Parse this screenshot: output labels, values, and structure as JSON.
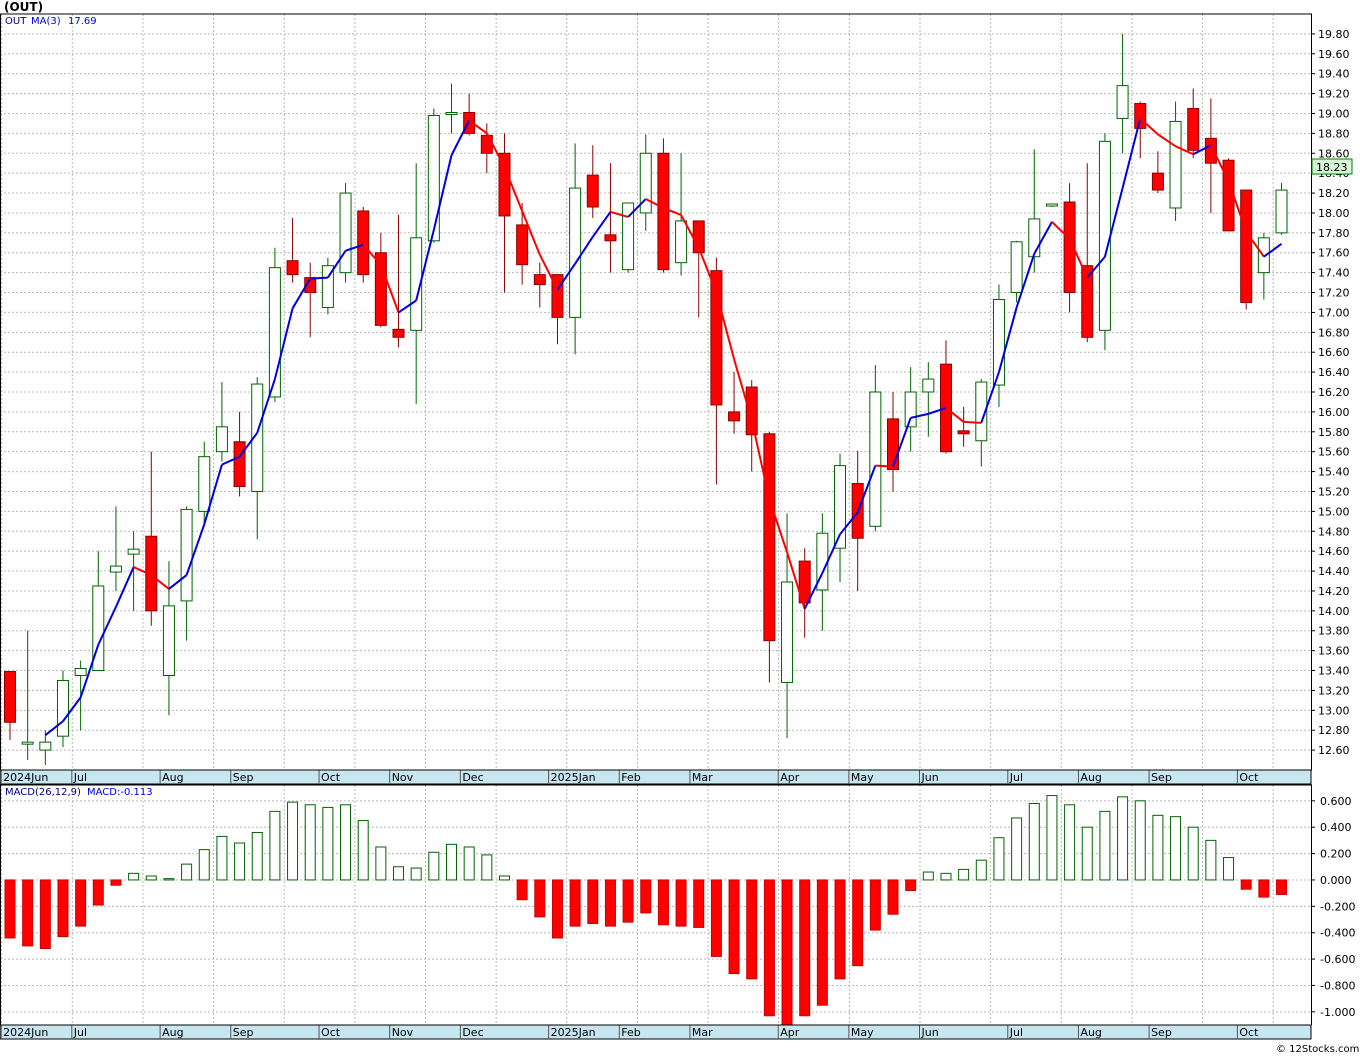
{
  "chart_data": [
    {
      "type": "candlestick",
      "title": "(OUT)",
      "legend": {
        "symbol": "OUT",
        "ma_label": "MA(3)",
        "ma_value": "17.69"
      },
      "last_price_label": "18.23",
      "y_ticks": [
        "12.60",
        "12.80",
        "13.00",
        "13.20",
        "13.40",
        "13.60",
        "13.80",
        "14.00",
        "14.20",
        "14.40",
        "14.60",
        "14.80",
        "15.00",
        "15.20",
        "15.40",
        "15.60",
        "15.80",
        "16.00",
        "16.20",
        "16.40",
        "16.60",
        "16.80",
        "17.00",
        "17.20",
        "17.40",
        "17.60",
        "17.80",
        "18.00",
        "18.20",
        "18.40",
        "18.60",
        "18.80",
        "19.00",
        "19.20",
        "19.40",
        "19.60",
        "19.80"
      ],
      "ylim": [
        12.4,
        20.0
      ],
      "x_labels": [
        {
          "label": "2024Jun",
          "week": 0
        },
        {
          "label": "Jul",
          "week": 4
        },
        {
          "label": "Aug",
          "week": 9
        },
        {
          "label": "Sep",
          "week": 13
        },
        {
          "label": "Oct",
          "week": 18
        },
        {
          "label": "Nov",
          "week": 22
        },
        {
          "label": "Dec",
          "week": 26
        },
        {
          "label": "2025Jan",
          "week": 31
        },
        {
          "label": "Feb",
          "week": 35
        },
        {
          "label": "Mar",
          "week": 39
        },
        {
          "label": "Apr",
          "week": 44
        },
        {
          "label": "May",
          "week": 48
        },
        {
          "label": "Jun",
          "week": 52
        },
        {
          "label": "Jul",
          "week": 57
        },
        {
          "label": "Aug",
          "week": 61
        },
        {
          "label": "Sep",
          "week": 65
        },
        {
          "label": "Oct",
          "week": 70
        }
      ],
      "candles": [
        {
          "o": 13.39,
          "h": 13.39,
          "l": 12.7,
          "c": 12.88
        },
        {
          "o": 12.68,
          "h": 13.8,
          "l": 12.5,
          "c": 12.68
        },
        {
          "o": 12.6,
          "h": 12.8,
          "l": 12.45,
          "c": 12.68
        },
        {
          "o": 12.74,
          "h": 13.4,
          "l": 12.63,
          "c": 13.3
        },
        {
          "o": 13.35,
          "h": 13.5,
          "l": 12.8,
          "c": 13.42
        },
        {
          "o": 13.4,
          "h": 14.6,
          "l": 13.4,
          "c": 14.25
        },
        {
          "o": 14.39,
          "h": 15.05,
          "l": 14.2,
          "c": 14.45
        },
        {
          "o": 14.57,
          "h": 14.8,
          "l": 14.0,
          "c": 14.62
        },
        {
          "o": 14.75,
          "h": 15.6,
          "l": 13.85,
          "c": 14.0
        },
        {
          "o": 13.35,
          "h": 14.5,
          "l": 12.95,
          "c": 14.05
        },
        {
          "o": 14.1,
          "h": 15.05,
          "l": 13.7,
          "c": 15.02
        },
        {
          "o": 15.0,
          "h": 15.7,
          "l": 14.85,
          "c": 15.55
        },
        {
          "o": 15.6,
          "h": 16.3,
          "l": 15.5,
          "c": 15.85
        },
        {
          "o": 15.7,
          "h": 16.0,
          "l": 15.15,
          "c": 15.25
        },
        {
          "o": 15.2,
          "h": 16.35,
          "l": 14.72,
          "c": 16.28
        },
        {
          "o": 16.15,
          "h": 17.65,
          "l": 16.1,
          "c": 17.45
        },
        {
          "o": 17.52,
          "h": 17.95,
          "l": 17.3,
          "c": 17.38
        },
        {
          "o": 17.35,
          "h": 17.5,
          "l": 16.75,
          "c": 17.2
        },
        {
          "o": 17.05,
          "h": 17.55,
          "l": 16.98,
          "c": 17.47
        },
        {
          "o": 17.4,
          "h": 18.3,
          "l": 17.3,
          "c": 18.2
        },
        {
          "o": 18.02,
          "h": 18.06,
          "l": 17.3,
          "c": 17.38
        },
        {
          "o": 17.6,
          "h": 17.8,
          "l": 16.85,
          "c": 16.87
        },
        {
          "o": 16.83,
          "h": 17.98,
          "l": 16.65,
          "c": 16.75
        },
        {
          "o": 16.82,
          "h": 18.5,
          "l": 16.08,
          "c": 17.75
        },
        {
          "o": 17.72,
          "h": 19.05,
          "l": 17.7,
          "c": 18.98
        },
        {
          "o": 19.01,
          "h": 19.3,
          "l": 18.8,
          "c": 19.01
        },
        {
          "o": 19.01,
          "h": 19.2,
          "l": 18.78,
          "c": 18.8
        },
        {
          "o": 18.78,
          "h": 18.9,
          "l": 18.4,
          "c": 18.6
        },
        {
          "o": 18.6,
          "h": 18.8,
          "l": 17.2,
          "c": 17.97
        },
        {
          "o": 17.88,
          "h": 18.1,
          "l": 17.28,
          "c": 17.48
        },
        {
          "o": 17.38,
          "h": 17.5,
          "l": 17.05,
          "c": 17.28
        },
        {
          "o": 17.38,
          "h": 17.38,
          "l": 16.68,
          "c": 16.95
        },
        {
          "o": 16.95,
          "h": 18.7,
          "l": 16.58,
          "c": 18.25
        },
        {
          "o": 18.38,
          "h": 18.68,
          "l": 17.95,
          "c": 18.06
        },
        {
          "o": 17.78,
          "h": 18.5,
          "l": 17.4,
          "c": 17.72
        },
        {
          "o": 17.43,
          "h": 18.05,
          "l": 17.4,
          "c": 18.1
        },
        {
          "o": 18.0,
          "h": 18.79,
          "l": 17.82,
          "c": 18.6
        },
        {
          "o": 18.6,
          "h": 18.75,
          "l": 17.4,
          "c": 17.43
        },
        {
          "o": 17.5,
          "h": 18.6,
          "l": 17.37,
          "c": 17.92
        },
        {
          "o": 17.92,
          "h": 17.92,
          "l": 16.95,
          "c": 17.6
        },
        {
          "o": 17.42,
          "h": 17.55,
          "l": 15.27,
          "c": 16.07
        },
        {
          "o": 16.0,
          "h": 16.4,
          "l": 15.78,
          "c": 15.91
        },
        {
          "o": 16.25,
          "h": 16.32,
          "l": 15.4,
          "c": 15.77
        },
        {
          "o": 15.78,
          "h": 15.8,
          "l": 13.28,
          "c": 13.7
        },
        {
          "o": 13.28,
          "h": 14.98,
          "l": 12.72,
          "c": 14.29
        },
        {
          "o": 14.5,
          "h": 14.63,
          "l": 13.73,
          "c": 14.08
        },
        {
          "o": 14.21,
          "h": 14.98,
          "l": 13.8,
          "c": 14.78
        },
        {
          "o": 14.63,
          "h": 15.58,
          "l": 14.29,
          "c": 15.46
        },
        {
          "o": 15.28,
          "h": 15.61,
          "l": 14.2,
          "c": 14.73
        },
        {
          "o": 14.85,
          "h": 16.47,
          "l": 14.8,
          "c": 16.2
        },
        {
          "o": 15.93,
          "h": 16.2,
          "l": 15.2,
          "c": 15.42
        },
        {
          "o": 15.85,
          "h": 16.45,
          "l": 15.6,
          "c": 16.2
        },
        {
          "o": 16.2,
          "h": 16.5,
          "l": 15.75,
          "c": 16.33
        },
        {
          "o": 16.48,
          "h": 16.72,
          "l": 15.58,
          "c": 15.6
        },
        {
          "o": 15.81,
          "h": 16.05,
          "l": 15.65,
          "c": 15.78
        },
        {
          "o": 15.71,
          "h": 16.33,
          "l": 15.45,
          "c": 16.3
        },
        {
          "o": 16.27,
          "h": 17.28,
          "l": 16.05,
          "c": 17.13
        },
        {
          "o": 17.2,
          "h": 17.72,
          "l": 17.1,
          "c": 17.71
        },
        {
          "o": 17.56,
          "h": 18.64,
          "l": 17.4,
          "c": 17.94
        },
        {
          "o": 18.09,
          "h": 18.09,
          "l": 18.06,
          "c": 18.09
        },
        {
          "o": 18.11,
          "h": 18.3,
          "l": 17.0,
          "c": 17.2
        },
        {
          "o": 17.47,
          "h": 18.5,
          "l": 16.7,
          "c": 16.75
        },
        {
          "o": 16.82,
          "h": 18.8,
          "l": 16.62,
          "c": 18.72
        },
        {
          "o": 18.95,
          "h": 19.8,
          "l": 18.6,
          "c": 19.28
        },
        {
          "o": 19.1,
          "h": 19.12,
          "l": 18.55,
          "c": 18.85
        },
        {
          "o": 18.4,
          "h": 18.62,
          "l": 18.2,
          "c": 18.23
        },
        {
          "o": 18.05,
          "h": 19.12,
          "l": 17.92,
          "c": 18.92
        },
        {
          "o": 19.05,
          "h": 19.25,
          "l": 18.55,
          "c": 18.63
        },
        {
          "o": 18.75,
          "h": 19.15,
          "l": 18.0,
          "c": 18.5
        },
        {
          "o": 18.53,
          "h": 18.55,
          "l": 17.82,
          "c": 17.82
        },
        {
          "o": 18.23,
          "h": 18.23,
          "l": 17.03,
          "c": 17.1
        },
        {
          "o": 17.4,
          "h": 17.8,
          "l": 17.13,
          "c": 17.75
        },
        {
          "o": 17.8,
          "h": 18.3,
          "l": 17.78,
          "c": 18.23
        }
      ],
      "ma3": [
        null,
        null,
        12.75,
        12.89,
        13.13,
        13.66,
        14.04,
        14.44,
        14.36,
        14.22,
        14.36,
        14.87,
        15.47,
        15.55,
        15.79,
        16.33,
        17.04,
        17.34,
        17.35,
        17.62,
        17.68,
        17.48,
        17.0,
        17.12,
        17.83,
        18.58,
        18.93,
        18.8,
        18.46,
        18.02,
        17.58,
        17.23,
        17.49,
        17.76,
        18.01,
        17.96,
        18.14,
        18.05,
        17.98,
        17.65,
        17.2,
        16.53,
        15.92,
        15.12,
        14.59,
        14.02,
        14.38,
        14.77,
        14.99,
        15.46,
        15.45,
        15.94,
        15.98,
        16.04,
        15.9,
        15.89,
        16.4,
        17.05,
        17.59,
        17.91,
        17.74,
        17.35,
        17.56,
        18.25,
        18.95,
        18.79,
        18.67,
        18.59,
        18.68,
        18.32,
        17.81,
        17.56,
        17.69
      ],
      "macd_label": "MACD(26,12,9)",
      "macd_value_label": "MACD:-0.113",
      "macd_ticks": [
        "-1.000",
        "-0.800",
        "-0.600",
        "-0.400",
        "-0.200",
        "0.000",
        "0.200",
        "0.400",
        "0.600"
      ],
      "macd_ylim": [
        -1.1,
        0.72
      ],
      "macd": [
        -0.44,
        -0.5,
        -0.52,
        -0.43,
        -0.35,
        -0.19,
        -0.04,
        0.05,
        0.03,
        0.01,
        0.12,
        0.23,
        0.33,
        0.28,
        0.36,
        0.52,
        0.59,
        0.57,
        0.55,
        0.57,
        0.45,
        0.25,
        0.1,
        0.09,
        0.21,
        0.27,
        0.25,
        0.19,
        0.03,
        -0.15,
        -0.28,
        -0.44,
        -0.35,
        -0.33,
        -0.35,
        -0.32,
        -0.25,
        -0.34,
        -0.35,
        -0.36,
        -0.58,
        -0.71,
        -0.75,
        -1.03,
        -1.13,
        -1.03,
        -0.95,
        -0.75,
        -0.65,
        -0.38,
        -0.26,
        -0.08,
        0.06,
        0.05,
        0.08,
        0.15,
        0.32,
        0.47,
        0.58,
        0.64,
        0.57,
        0.4,
        0.52,
        0.63,
        0.6,
        0.49,
        0.48,
        0.4,
        0.3,
        0.17,
        -0.07,
        -0.13,
        -0.11
      ],
      "x_labels_bottom": [
        {
          "label": "2024Jun",
          "week": 0
        },
        {
          "label": "Jul",
          "week": 4
        },
        {
          "label": "Aug",
          "week": 9
        },
        {
          "label": "Sep",
          "week": 13
        },
        {
          "label": "Oct",
          "week": 18
        },
        {
          "label": "Nov",
          "week": 22
        },
        {
          "label": "Dec",
          "week": 26
        },
        {
          "label": "2025Jan",
          "week": 31
        },
        {
          "label": "Feb",
          "week": 35
        },
        {
          "label": "Mar",
          "week": 39
        },
        {
          "label": "Apr",
          "week": 44
        },
        {
          "label": "May",
          "week": 48
        },
        {
          "label": "Jun",
          "week": 52
        },
        {
          "label": "Jul",
          "week": 57
        },
        {
          "label": "Aug",
          "week": 61
        },
        {
          "label": "Sep",
          "week": 65
        },
        {
          "label": "Oct",
          "week": 70
        }
      ],
      "watermark": "© 12Stocks.com",
      "colors": {
        "up": "#ffffff",
        "up_border": "#006400",
        "down": "#ff0000",
        "ma_up": "#0000dd",
        "ma_down": "#ff0000",
        "hist_pos_border": "#006400",
        "hist_neg": "#ff0000",
        "axis_band": "#c8e6f0",
        "last_price_bg": "#d8f5d8"
      }
    }
  ]
}
